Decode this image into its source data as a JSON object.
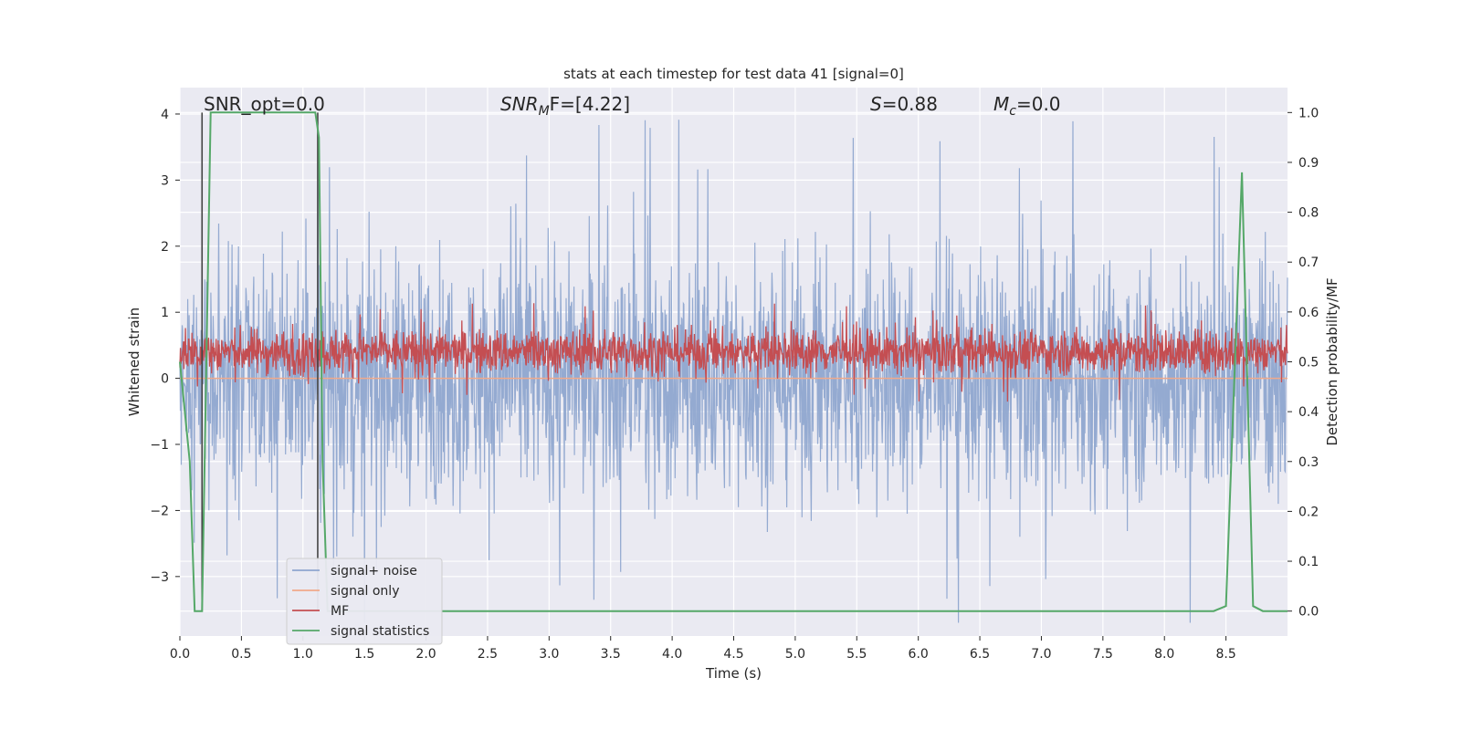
{
  "chart_data": {
    "type": "line",
    "title": "stats at each timestep for test data 41 [signal=0]",
    "xlabel": "Time (s)",
    "ylabel_left": "Whitened strain",
    "ylabel_right": "Detection probability/MF",
    "xlim": [
      0.0,
      9.0
    ],
    "ylim_left": [
      -3.9,
      4.4
    ],
    "ylim_right": [
      -0.05,
      1.05
    ],
    "xticks": [
      0.0,
      0.5,
      1.0,
      1.5,
      2.0,
      2.5,
      3.0,
      3.5,
      4.0,
      4.5,
      5.0,
      5.5,
      6.0,
      6.5,
      7.0,
      7.5,
      8.0,
      8.5
    ],
    "xtick_labels": [
      "0.0",
      "0.5",
      "1.0",
      "1.5",
      "2.0",
      "2.5",
      "3.0",
      "3.5",
      "4.0",
      "4.5",
      "5.0",
      "5.5",
      "6.0",
      "6.5",
      "7.0",
      "7.5",
      "8.0",
      "8.5"
    ],
    "yticks_left": [
      -3,
      -2,
      -1,
      0,
      1,
      2,
      3,
      4
    ],
    "ytick_labels_left": [
      "−3",
      "−2",
      "−1",
      "0",
      "1",
      "2",
      "3",
      "4"
    ],
    "yticks_right": [
      0.0,
      0.1,
      0.2,
      0.3,
      0.4,
      0.5,
      0.6,
      0.7,
      0.8,
      0.9,
      1.0
    ],
    "ytick_labels_right": [
      "0.0",
      "0.1",
      "0.2",
      "0.3",
      "0.4",
      "0.5",
      "0.6",
      "0.7",
      "0.8",
      "0.9",
      "1.0"
    ],
    "grid": true,
    "legend_position": "lower-left",
    "annotations": {
      "snr_opt": "SNR_opt=0.0",
      "snr_mf_base": "SNR",
      "snr_mf_sub": "M",
      "snr_mf_rest": "F=[4.22]",
      "s_var": "S",
      "s_rest": "=0.88",
      "mc_var": "M",
      "mc_sub": "c",
      "mc_rest": "=0.0"
    },
    "series": [
      {
        "name": "signal+ noise",
        "color": "#8fa6cf",
        "axis": "left",
        "kind": "noise",
        "amplitude_typical": 1.6,
        "amplitude_peak": 4.0
      },
      {
        "name": "signal only",
        "color": "#f0a98a",
        "axis": "left",
        "kind": "flat",
        "value": 0.0
      },
      {
        "name": "MF",
        "color": "#c44e52",
        "axis": "right",
        "kind": "noise",
        "center": 0.52,
        "amplitude_typical": 0.05,
        "amplitude_peak": 0.1
      },
      {
        "name": "signal statistics",
        "color": "#55a868",
        "axis": "right",
        "kind": "line",
        "x": [
          0.0,
          0.08,
          0.12,
          0.18,
          0.25,
          1.1,
          1.13,
          1.16,
          1.2,
          8.4,
          8.5,
          8.63,
          8.72,
          8.8,
          9.0
        ],
        "y": [
          0.5,
          0.3,
          0.0,
          0.0,
          1.0,
          1.0,
          0.95,
          0.3,
          0.0,
          0.0,
          0.01,
          0.88,
          0.01,
          0.0,
          0.0
        ]
      }
    ],
    "vertical_markers": {
      "color": "#444444",
      "x": [
        0.18,
        1.12
      ],
      "y_bottom": 0.0,
      "y_top": 1.0
    }
  }
}
